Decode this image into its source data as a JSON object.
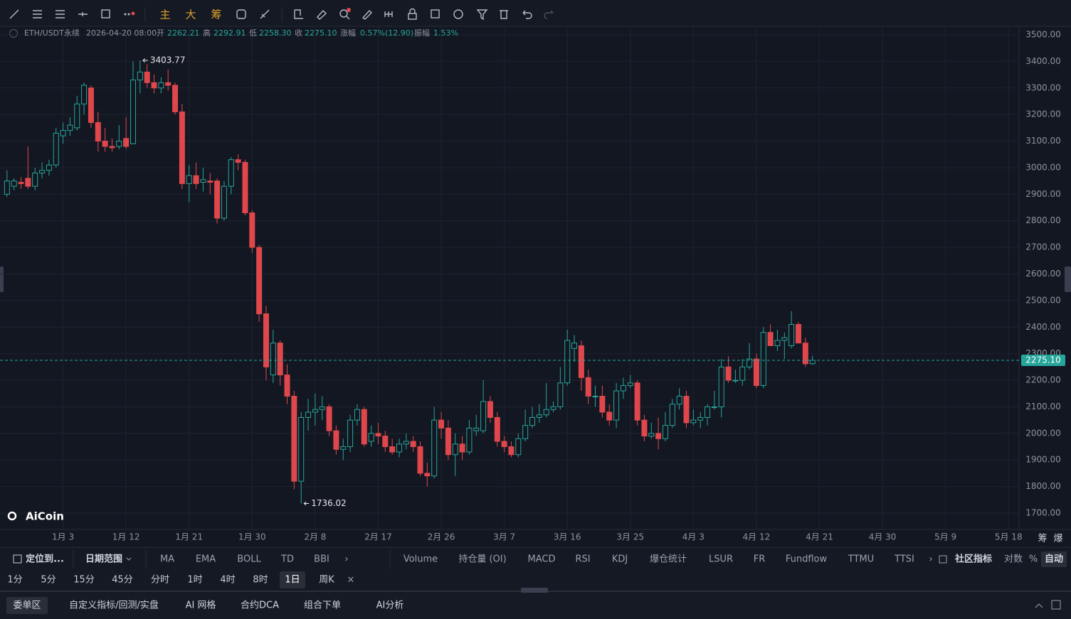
{
  "toolbar": {
    "items": [
      "主",
      "大",
      "筹"
    ]
  },
  "header": {
    "symbol": "ETH/USDT永续",
    "time": "2026-04-20 08:00",
    "fields": [
      {
        "label": "开",
        "value": "2262.21"
      },
      {
        "label": "高",
        "value": "2292.91"
      },
      {
        "label": "低",
        "value": "2258.30"
      },
      {
        "label": "收",
        "value": "2275.10"
      },
      {
        "label": "涨幅",
        "value": "0.57%(12.90)"
      },
      {
        "label": "振幅",
        "value": "1.53%"
      }
    ]
  },
  "chart_data": {
    "type": "candlestick",
    "up_color": "#26a69a",
    "down_color": "#e0474c",
    "ohlc": [
      [
        2900,
        2990,
        2890,
        2950
      ],
      [
        2930,
        2960,
        2915,
        2950
      ],
      [
        2945,
        2965,
        2920,
        2940
      ],
      [
        2960,
        3080,
        2920,
        2930
      ],
      [
        2930,
        3000,
        2915,
        2980
      ],
      [
        2980,
        3020,
        2960,
        2990
      ],
      [
        2990,
        3030,
        2970,
        3010
      ],
      [
        3010,
        3150,
        3000,
        3130
      ],
      [
        3120,
        3170,
        3090,
        3140
      ],
      [
        3140,
        3190,
        3120,
        3160
      ],
      [
        3150,
        3270,
        3140,
        3240
      ],
      [
        3240,
        3320,
        3200,
        3310
      ],
      [
        3300,
        3310,
        3150,
        3170
      ],
      [
        3170,
        3210,
        3060,
        3100
      ],
      [
        3100,
        3150,
        3060,
        3080
      ],
      [
        3080,
        3110,
        3060,
        3075
      ],
      [
        3080,
        3160,
        3070,
        3100
      ],
      [
        3110,
        3190,
        3070,
        3080
      ],
      [
        3090,
        3400,
        3090,
        3330
      ],
      [
        3330,
        3403.77,
        3280,
        3360
      ],
      [
        3360,
        3390,
        3300,
        3320
      ],
      [
        3320,
        3350,
        3280,
        3300
      ],
      [
        3300,
        3340,
        3280,
        3320
      ],
      [
        3320,
        3370,
        3290,
        3310
      ],
      [
        3310,
        3320,
        3200,
        3210
      ],
      [
        3210,
        3240,
        2920,
        2940
      ],
      [
        2940,
        3010,
        2870,
        2970
      ],
      [
        2970,
        3020,
        2920,
        2940
      ],
      [
        2945,
        3000,
        2910,
        2955
      ],
      [
        2950,
        2980,
        2900,
        2945
      ],
      [
        2950,
        2960,
        2790,
        2810
      ],
      [
        2810,
        2950,
        2800,
        2930
      ],
      [
        2930,
        3040,
        2900,
        3030
      ],
      [
        3030,
        3050,
        2990,
        3020
      ],
      [
        3020,
        3030,
        2820,
        2830
      ],
      [
        2830,
        2840,
        2680,
        2700
      ],
      [
        2700,
        2710,
        2420,
        2450
      ],
      [
        2450,
        2480,
        2200,
        2250
      ],
      [
        2220,
        2390,
        2190,
        2340
      ],
      [
        2340,
        2350,
        2180,
        2220
      ],
      [
        2220,
        2260,
        2110,
        2140
      ],
      [
        2140,
        2160,
        1790,
        1820
      ],
      [
        1820,
        2080,
        1736.02,
        2060
      ],
      [
        2060,
        2130,
        2010,
        2080
      ],
      [
        2080,
        2150,
        2030,
        2090
      ],
      [
        2090,
        2140,
        2050,
        2100
      ],
      [
        2100,
        2110,
        1990,
        2010
      ],
      [
        2010,
        2030,
        1920,
        1940
      ],
      [
        1940,
        1980,
        1900,
        1950
      ],
      [
        1950,
        2070,
        1930,
        2050
      ],
      [
        2050,
        2110,
        2030,
        2090
      ],
      [
        2090,
        2100,
        1950,
        1960
      ],
      [
        1970,
        2030,
        1950,
        2000
      ],
      [
        2000,
        2040,
        1960,
        1990
      ],
      [
        1990,
        2010,
        1930,
        1950
      ],
      [
        1950,
        1980,
        1920,
        1930
      ],
      [
        1930,
        1980,
        1910,
        1960
      ],
      [
        1960,
        2000,
        1940,
        1970
      ],
      [
        1970,
        1990,
        1930,
        1950
      ],
      [
        1950,
        1970,
        1840,
        1850
      ],
      [
        1850,
        1890,
        1800,
        1840
      ],
      [
        1840,
        2100,
        1830,
        2050
      ],
      [
        2050,
        2080,
        1980,
        2020
      ],
      [
        2020,
        2050,
        1900,
        1920
      ],
      [
        1920,
        2000,
        1840,
        1960
      ],
      [
        1960,
        1990,
        1900,
        1930
      ],
      [
        1930,
        2050,
        1920,
        2020
      ],
      [
        2010,
        2070,
        1990,
        2020
      ],
      [
        2010,
        2200,
        2000,
        2120
      ],
      [
        2120,
        2140,
        2040,
        2060
      ],
      [
        2060,
        2080,
        1950,
        1970
      ],
      [
        1970,
        1990,
        1930,
        1950
      ],
      [
        1950,
        1970,
        1910,
        1920
      ],
      [
        1920,
        2000,
        1910,
        1980
      ],
      [
        1980,
        2090,
        1970,
        2030
      ],
      [
        2030,
        2100,
        2020,
        2060
      ],
      [
        2060,
        2110,
        2040,
        2070
      ],
      [
        2070,
        2190,
        2060,
        2090
      ],
      [
        2090,
        2120,
        2080,
        2100
      ],
      [
        2100,
        2250,
        2090,
        2190
      ],
      [
        2190,
        2390,
        2180,
        2350
      ],
      [
        2320,
        2370,
        2270,
        2340
      ],
      [
        2330,
        2350,
        2160,
        2210
      ],
      [
        2210,
        2240,
        2110,
        2140
      ],
      [
        2140,
        2180,
        2100,
        2140
      ],
      [
        2140,
        2180,
        2060,
        2080
      ],
      [
        2080,
        2110,
        2030,
        2050
      ],
      [
        2050,
        2190,
        2020,
        2160
      ],
      [
        2160,
        2210,
        2130,
        2180
      ],
      [
        2180,
        2220,
        2170,
        2190
      ],
      [
        2190,
        2200,
        2030,
        2050
      ],
      [
        2050,
        2070,
        1970,
        1990
      ],
      [
        1990,
        2040,
        1980,
        2000
      ],
      [
        2000,
        2060,
        1940,
        1980
      ],
      [
        1980,
        2080,
        1970,
        2030
      ],
      [
        2030,
        2130,
        2020,
        2110
      ],
      [
        2110,
        2170,
        2090,
        2140
      ],
      [
        2140,
        2160,
        2020,
        2040
      ],
      [
        2040,
        2090,
        2030,
        2050
      ],
      [
        2050,
        2080,
        2020,
        2060
      ],
      [
        2060,
        2110,
        2030,
        2100
      ],
      [
        2100,
        2160,
        2090,
        2100
      ],
      [
        2100,
        2280,
        2060,
        2250
      ],
      [
        2250,
        2290,
        2190,
        2200
      ],
      [
        2200,
        2240,
        2190,
        2200
      ],
      [
        2200,
        2280,
        2180,
        2250
      ],
      [
        2250,
        2340,
        2240,
        2280
      ],
      [
        2280,
        2300,
        2170,
        2180
      ],
      [
        2180,
        2400,
        2170,
        2380
      ],
      [
        2380,
        2410,
        2330,
        2330
      ],
      [
        2330,
        2390,
        2310,
        2350
      ],
      [
        2350,
        2380,
        2280,
        2360
      ],
      [
        2330,
        2460,
        2320,
        2410
      ],
      [
        2410,
        2420,
        2340,
        2340
      ],
      [
        2340,
        2360,
        2250,
        2262
      ],
      [
        2262.21,
        2292.91,
        2258.3,
        2275.1
      ]
    ],
    "xlim": [
      -1,
      144.5
    ],
    "xticks": [
      {
        "value": 8,
        "label": "1月 3"
      },
      {
        "value": 17,
        "label": "1月 12"
      },
      {
        "value": 26,
        "label": "1月 21"
      },
      {
        "value": 35,
        "label": "1月 30"
      },
      {
        "value": 44,
        "label": "2月 8"
      },
      {
        "value": 53,
        "label": "2月 17"
      },
      {
        "value": 62,
        "label": "2月 26"
      },
      {
        "value": 71,
        "label": "3月 7"
      },
      {
        "value": 80,
        "label": "3月 16"
      },
      {
        "value": 89,
        "label": "3月 25"
      },
      {
        "value": 98,
        "label": "4月 3"
      },
      {
        "value": 107,
        "label": "4月 12"
      },
      {
        "value": 116,
        "label": "4月 21"
      },
      {
        "value": 125,
        "label": "4月 30"
      },
      {
        "value": 134,
        "label": "5月 9"
      },
      {
        "value": 143,
        "label": "5月 18"
      }
    ],
    "ylim": [
      1638.5,
      3529.4
    ],
    "yticks": [
      {
        "value": 1700,
        "label": "1700.00"
      },
      {
        "value": 1800,
        "label": "1800.00"
      },
      {
        "value": 1900,
        "label": "1900.00"
      },
      {
        "value": 2000,
        "label": "2000.00"
      },
      {
        "value": 2100,
        "label": "2100.00"
      },
      {
        "value": 2200,
        "label": "2200.00"
      },
      {
        "value": 2300,
        "label": "2300.00"
      },
      {
        "value": 2400,
        "label": "2400.00"
      },
      {
        "value": 2500,
        "label": "2500.00"
      },
      {
        "value": 2600,
        "label": "2600.00"
      },
      {
        "value": 2700,
        "label": "2700.00"
      },
      {
        "value": 2800,
        "label": "2800.00"
      },
      {
        "value": 2900,
        "label": "2900.00"
      },
      {
        "value": 3000,
        "label": "3000.00"
      },
      {
        "value": 3100,
        "label": "3100.00"
      },
      {
        "value": 3200,
        "label": "3200.00"
      },
      {
        "value": 3300,
        "label": "3300.00"
      },
      {
        "value": 3400,
        "label": "3400.00"
      },
      {
        "value": 3500,
        "label": "3500.00"
      }
    ],
    "grid": true,
    "last_price": {
      "value": 2275.1,
      "label": "2275.10"
    },
    "annotations": [
      {
        "candle": 19,
        "field": 1
      },
      {
        "candle": 42,
        "field": 2
      }
    ]
  },
  "logo": "AiCoin",
  "axis_buttons": [
    "筹",
    "爆"
  ],
  "indicator_bar": [
    "定位到...",
    "日期范围",
    "MA",
    "EMA",
    "BOLL",
    "TD",
    "BBI",
    "Volume",
    "持仓量 (OI)",
    "MACD",
    "RSI",
    "KDJ",
    "爆仓统计",
    "LSUR",
    "FR",
    "Fundflow",
    "TTMU",
    "TTSI",
    "社区指标",
    "对数",
    "%",
    "自动"
  ],
  "intervals": [
    "1分",
    "5分",
    "15分",
    "45分",
    "分时",
    "1时",
    "4时",
    "8时",
    "1日",
    "周K"
  ],
  "active_interval": 8,
  "bottom_tabs": [
    "委单区",
    "自定义指标/回测/实盘",
    "AI 网格",
    "合约DCA",
    "组合下单",
    "AI分析"
  ]
}
